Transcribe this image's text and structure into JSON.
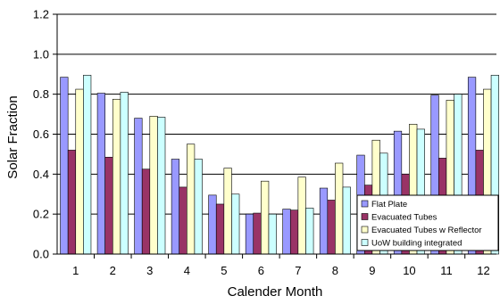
{
  "chart_data": {
    "type": "bar",
    "xlabel": "Calender Month",
    "ylabel": "Solar Fraction",
    "ylim": [
      0,
      1.2
    ],
    "yticks": [
      "0.0",
      "0.2",
      "0.4",
      "0.6",
      "0.8",
      "1.0",
      "1.2"
    ],
    "grid": "horizontal",
    "legend_position": "bottom-right",
    "categories": [
      "1",
      "2",
      "3",
      "4",
      "5",
      "6",
      "7",
      "8",
      "9",
      "10",
      "11",
      "12"
    ],
    "series": [
      {
        "name": "Flat Plate",
        "color": "#9999ff",
        "values": [
          0.885,
          0.805,
          0.68,
          0.475,
          0.295,
          0.2,
          0.225,
          0.33,
          0.495,
          0.615,
          0.795,
          0.885
        ]
      },
      {
        "name": "Evacuated Tubes",
        "color": "#993366",
        "values": [
          0.52,
          0.485,
          0.425,
          0.335,
          0.25,
          0.205,
          0.22,
          0.27,
          0.345,
          0.4,
          0.48,
          0.52
        ]
      },
      {
        "name": "Evacuated Tubes w Reflector",
        "color": "#ffffcc",
        "values": [
          0.825,
          0.775,
          0.69,
          0.55,
          0.43,
          0.365,
          0.385,
          0.455,
          0.57,
          0.65,
          0.77,
          0.825
        ]
      },
      {
        "name": "UoW building integrated",
        "color": "#ccffff",
        "values": [
          0.895,
          0.81,
          0.685,
          0.475,
          0.3,
          0.2,
          0.23,
          0.335,
          0.505,
          0.625,
          0.8,
          0.895
        ]
      }
    ]
  }
}
